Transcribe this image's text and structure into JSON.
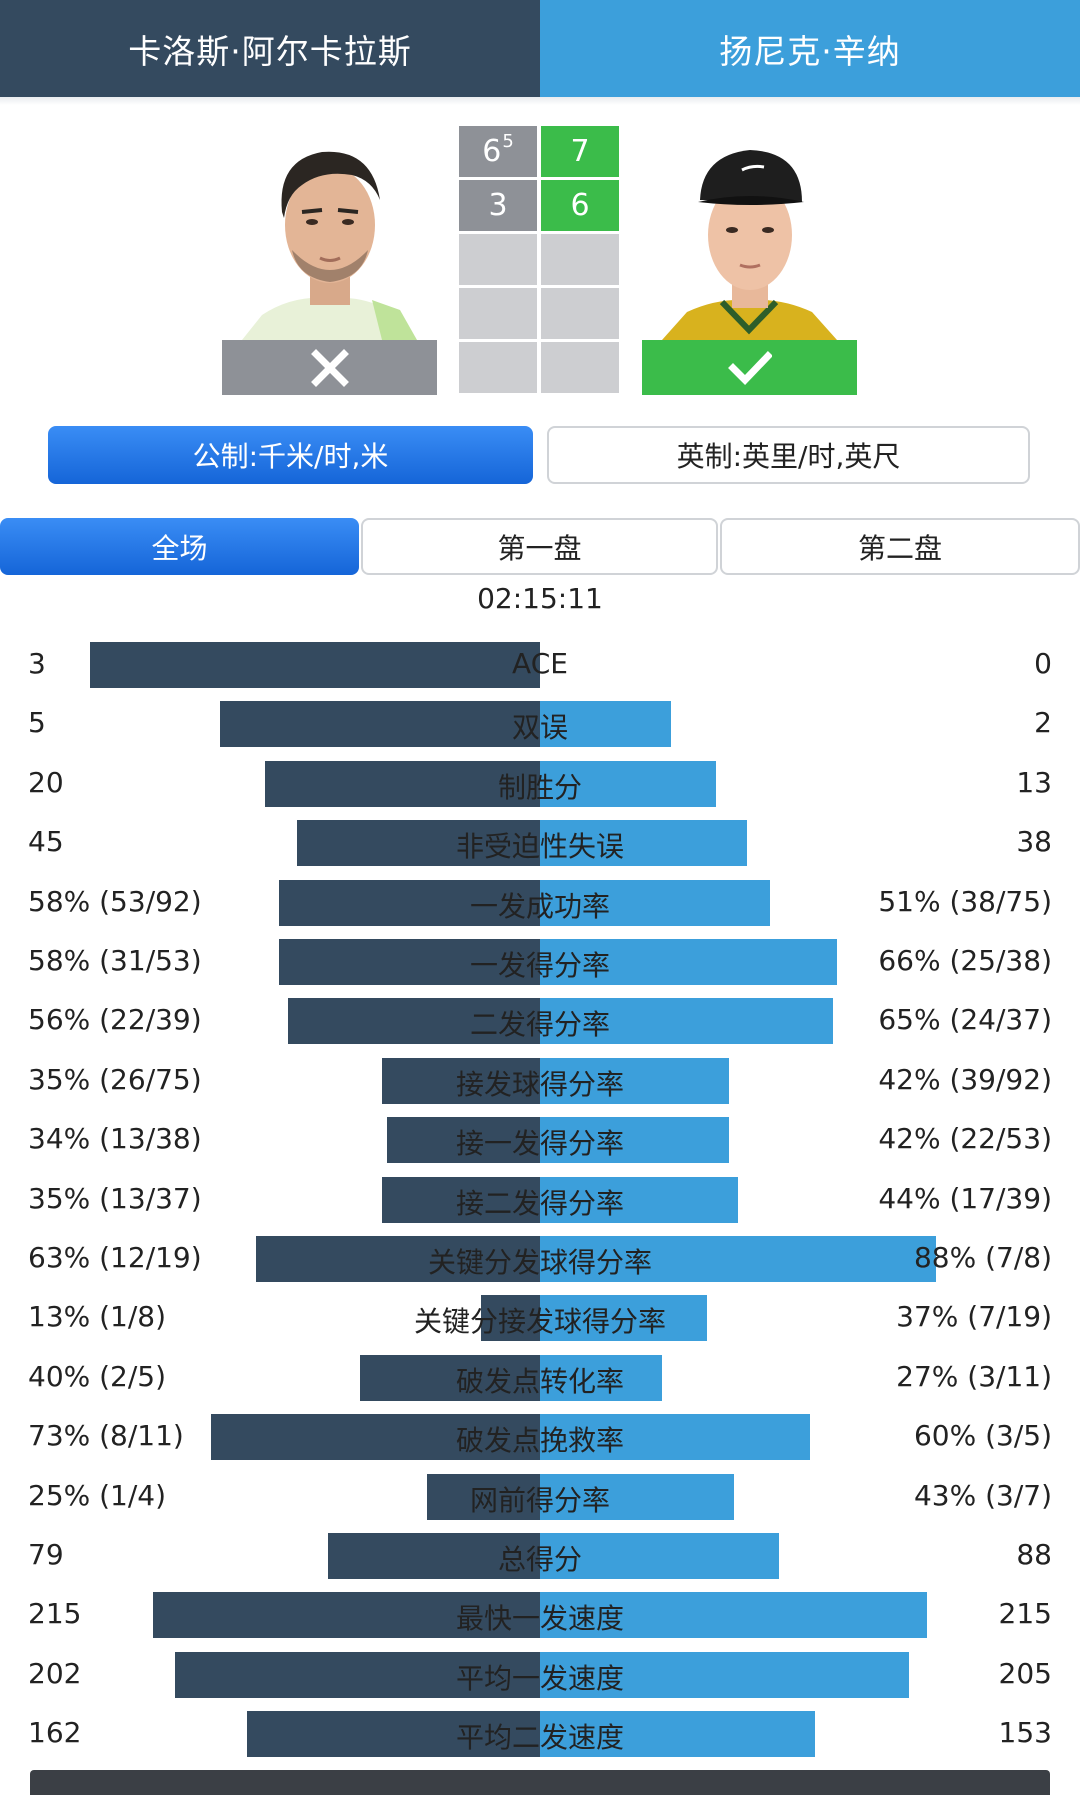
{
  "players": {
    "left": {
      "name": "卡洛斯·阿尔卡拉斯",
      "result": "loss",
      "sets": [
        "6",
        "3"
      ],
      "tiebreak": [
        "5",
        ""
      ]
    },
    "right": {
      "name": "扬尼克·辛纳",
      "result": "win",
      "sets": [
        "7",
        "6"
      ]
    }
  },
  "units": {
    "metric": "公制:千米/时,米",
    "imperial": "英制:英里/时,英尺"
  },
  "tabs": [
    "全场",
    "第一盘",
    "第二盘"
  ],
  "duration": "02:15:11",
  "colors": {
    "left": "#344a5f",
    "right": "#3c9fdb",
    "win": "#3bbc4a",
    "loss": "#8e9197",
    "empty_cell": "#cdced1"
  },
  "stats": [
    {
      "label": "ACE",
      "left": "3",
      "right": "0",
      "lp": 1.0,
      "rp": 0.0
    },
    {
      "label": "双误",
      "left": "5",
      "right": "2",
      "lp": 0.71,
      "rp": 0.29
    },
    {
      "label": "制胜分",
      "left": "20",
      "right": "13",
      "lp": 0.61,
      "rp": 0.39
    },
    {
      "label": "非受迫性失误",
      "left": "45",
      "right": "38",
      "lp": 0.54,
      "rp": 0.46
    },
    {
      "label": "一发成功率",
      "left": "58% (53/92)",
      "right": "51% (38/75)",
      "lp": 0.58,
      "rp": 0.51
    },
    {
      "label": "一发得分率",
      "left": "58% (31/53)",
      "right": "66% (25/38)",
      "lp": 0.58,
      "rp": 0.66
    },
    {
      "label": "二发得分率",
      "left": "56% (22/39)",
      "right": "65% (24/37)",
      "lp": 0.56,
      "rp": 0.65
    },
    {
      "label": "接发球得分率",
      "left": "35% (26/75)",
      "right": "42% (39/92)",
      "lp": 0.35,
      "rp": 0.42
    },
    {
      "label": "接一发得分率",
      "left": "34% (13/38)",
      "right": "42% (22/53)",
      "lp": 0.34,
      "rp": 0.42
    },
    {
      "label": "接二发得分率",
      "left": "35% (13/37)",
      "right": "44% (17/39)",
      "lp": 0.35,
      "rp": 0.44
    },
    {
      "label": "关键分发球得分率",
      "left": "63% (12/19)",
      "right": "88% (7/8)",
      "lp": 0.63,
      "rp": 0.88
    },
    {
      "label": "关键分接发球得分率",
      "left": "13% (1/8)",
      "right": "37% (7/19)",
      "lp": 0.13,
      "rp": 0.37
    },
    {
      "label": "破发点转化率",
      "left": "40% (2/5)",
      "right": "27% (3/11)",
      "lp": 0.4,
      "rp": 0.27
    },
    {
      "label": "破发点挽救率",
      "left": "73% (8/11)",
      "right": "60% (3/5)",
      "lp": 0.73,
      "rp": 0.6
    },
    {
      "label": "网前得分率",
      "left": "25% (1/4)",
      "right": "43% (3/7)",
      "lp": 0.25,
      "rp": 0.43
    },
    {
      "label": "总得分",
      "left": "79",
      "right": "88",
      "lp": 0.47,
      "rp": 0.53
    },
    {
      "label": "最快一发速度",
      "left": "215",
      "right": "215",
      "lp": 0.86,
      "rp": 0.86
    },
    {
      "label": "平均一发速度",
      "left": "202",
      "right": "205",
      "lp": 0.81,
      "rp": 0.82
    },
    {
      "label": "平均二发速度",
      "left": "162",
      "right": "153",
      "lp": 0.65,
      "rp": 0.61
    }
  ]
}
